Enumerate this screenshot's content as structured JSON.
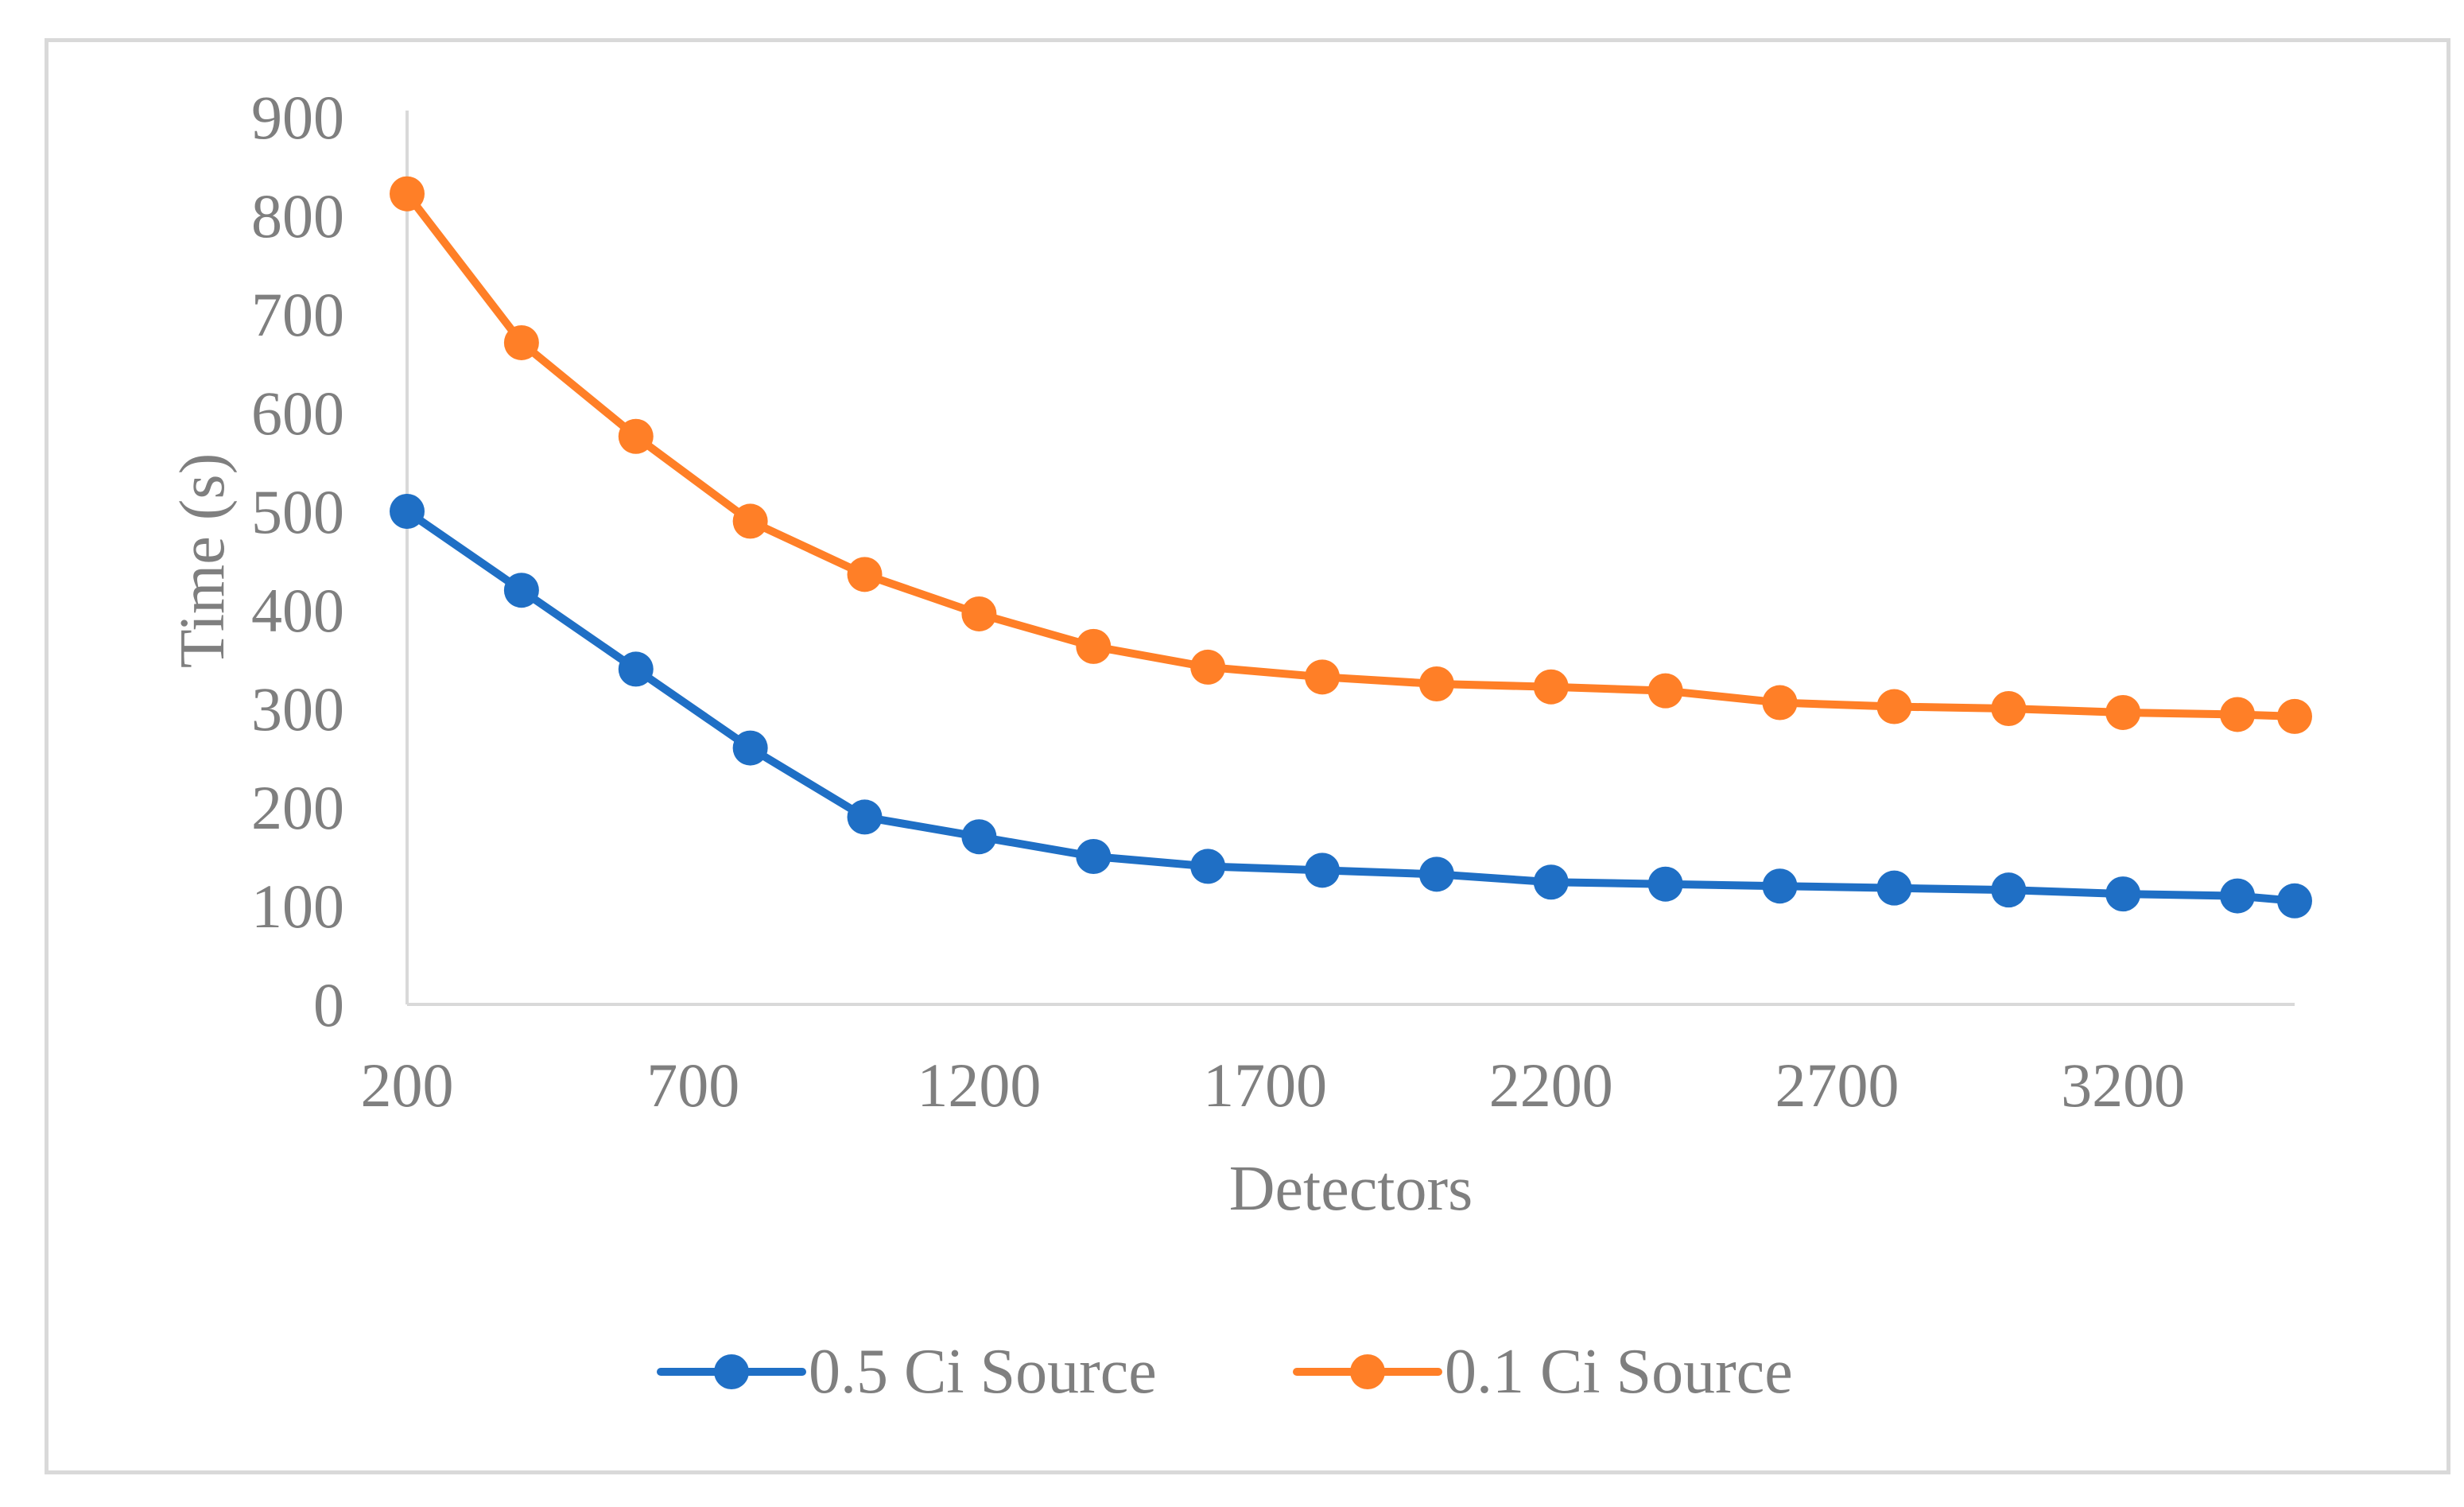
{
  "chart_data": {
    "type": "line",
    "title": "",
    "xlabel": "Detectors",
    "ylabel": "Time (s)",
    "xlim": [
      200,
      3500
    ],
    "ylim": [
      0,
      900
    ],
    "x_ticks": [
      200,
      700,
      1200,
      1700,
      2200,
      2700,
      3200
    ],
    "y_ticks": [
      0,
      100,
      200,
      300,
      400,
      500,
      600,
      700,
      800,
      900
    ],
    "grid": false,
    "legend_position": "bottom",
    "x": [
      200,
      400,
      600,
      800,
      1000,
      1200,
      1400,
      1600,
      1800,
      2000,
      2200,
      2400,
      2600,
      2800,
      3000,
      3200,
      3400,
      3500
    ],
    "series": [
      {
        "name": "0.5 Ci Source",
        "color": "#1f6fc5",
        "values": [
          500,
          420,
          340,
          260,
          190,
          170,
          150,
          140,
          136,
          132,
          124,
          122,
          120,
          118,
          116,
          112,
          110,
          105
        ]
      },
      {
        "name": "0.1 Ci Source",
        "color": "#ff7f27",
        "values": [
          822,
          671,
          576,
          490,
          436,
          396,
          363,
          342,
          332,
          325,
          322,
          318,
          306,
          302,
          300,
          296,
          294,
          292
        ]
      }
    ]
  }
}
